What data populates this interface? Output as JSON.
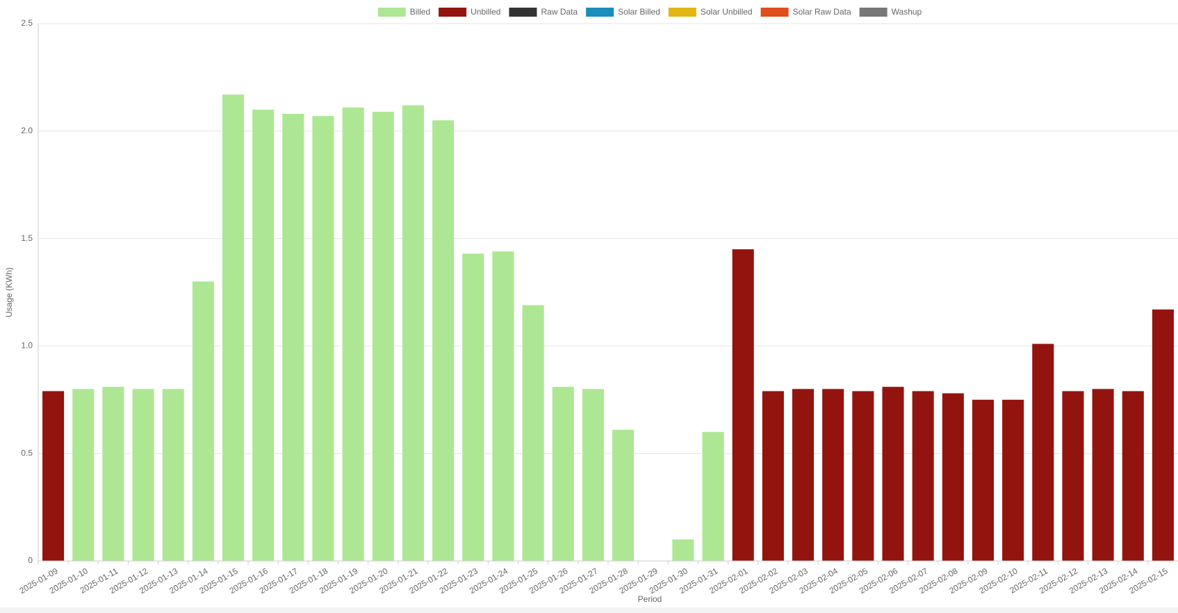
{
  "chart_data": {
    "type": "bar",
    "stacked": true,
    "x_label": "Period",
    "y_label": "Usage (KWh)",
    "categories": [
      "2025-01-09",
      "2025-01-10",
      "2025-01-11",
      "2025-01-12",
      "2025-01-13",
      "2025-01-14",
      "2025-01-15",
      "2025-01-16",
      "2025-01-17",
      "2025-01-18",
      "2025-01-19",
      "2025-01-20",
      "2025-01-21",
      "2025-01-22",
      "2025-01-23",
      "2025-01-24",
      "2025-01-25",
      "2025-01-26",
      "2025-01-27",
      "2025-01-28",
      "2025-01-29",
      "2025-01-30",
      "2025-01-31",
      "2025-02-01",
      "2025-02-02",
      "2025-02-03",
      "2025-02-04",
      "2025-02-05",
      "2025-02-06",
      "2025-02-07",
      "2025-02-08",
      "2025-02-09",
      "2025-02-10",
      "2025-02-11",
      "2025-02-12",
      "2025-02-13",
      "2025-02-14",
      "2025-02-15"
    ],
    "series": [
      {
        "name": "Billed",
        "color": "#aee794",
        "values": [
          null,
          0.8,
          0.81,
          0.8,
          0.8,
          1.3,
          2.17,
          2.1,
          2.08,
          2.07,
          2.11,
          2.09,
          2.12,
          2.05,
          1.43,
          1.44,
          1.19,
          0.81,
          0.8,
          0.61,
          null,
          0.1,
          0.6,
          null,
          null,
          null,
          null,
          null,
          null,
          null,
          null,
          null,
          null,
          null,
          null,
          null,
          null,
          null
        ]
      },
      {
        "name": "Unbilled",
        "color": "#93140f",
        "values": [
          0.79,
          null,
          null,
          null,
          null,
          null,
          null,
          null,
          null,
          null,
          null,
          null,
          null,
          null,
          null,
          null,
          null,
          null,
          null,
          null,
          null,
          null,
          null,
          1.45,
          0.79,
          0.8,
          0.8,
          0.79,
          0.81,
          0.79,
          0.78,
          0.75,
          0.75,
          1.01,
          0.79,
          0.8,
          0.79,
          1.17
        ]
      },
      {
        "name": "Raw Data",
        "color": "#333333",
        "values": [
          null,
          null,
          null,
          null,
          null,
          null,
          null,
          null,
          null,
          null,
          null,
          null,
          null,
          null,
          null,
          null,
          null,
          null,
          null,
          null,
          null,
          null,
          null,
          null,
          null,
          null,
          null,
          null,
          null,
          null,
          null,
          null,
          null,
          null,
          null,
          null,
          null,
          null
        ]
      },
      {
        "name": "Solar Billed",
        "color": "#1a8fbd",
        "values": [
          null,
          null,
          null,
          null,
          null,
          null,
          null,
          null,
          null,
          null,
          null,
          null,
          null,
          null,
          null,
          null,
          null,
          null,
          null,
          null,
          null,
          null,
          null,
          null,
          null,
          null,
          null,
          null,
          null,
          null,
          null,
          null,
          null,
          null,
          null,
          null,
          null,
          null
        ]
      },
      {
        "name": "Solar Unbilled",
        "color": "#e0b714",
        "values": [
          null,
          null,
          null,
          null,
          null,
          null,
          null,
          null,
          null,
          null,
          null,
          null,
          null,
          null,
          null,
          null,
          null,
          null,
          null,
          null,
          null,
          null,
          null,
          null,
          null,
          null,
          null,
          null,
          null,
          null,
          null,
          null,
          null,
          null,
          null,
          null,
          null,
          null
        ]
      },
      {
        "name": "Solar Raw Data",
        "color": "#e04e1b",
        "values": [
          null,
          null,
          null,
          null,
          null,
          null,
          null,
          null,
          null,
          null,
          null,
          null,
          null,
          null,
          null,
          null,
          null,
          null,
          null,
          null,
          null,
          null,
          null,
          null,
          null,
          null,
          null,
          null,
          null,
          null,
          null,
          null,
          null,
          null,
          null,
          null,
          null,
          null
        ]
      },
      {
        "name": "Washup",
        "color": "#777777",
        "values": [
          null,
          null,
          null,
          null,
          null,
          null,
          null,
          null,
          null,
          null,
          null,
          null,
          null,
          null,
          null,
          null,
          null,
          null,
          null,
          null,
          null,
          null,
          null,
          null,
          null,
          null,
          null,
          null,
          null,
          null,
          null,
          null,
          null,
          null,
          null,
          null,
          null,
          null
        ]
      }
    ],
    "ylim": [
      0,
      2.5
    ],
    "yticks": [
      0,
      {
        "value": 0.5,
        "label": "0.5"
      },
      {
        "value": 1,
        "label": "1.0"
      },
      {
        "value": 1.5,
        "label": "1.5"
      },
      {
        "value": 2,
        "label": "2.0"
      },
      {
        "value": 2.5,
        "label": "2.5"
      }
    ],
    "grid": true,
    "legend": "top"
  }
}
